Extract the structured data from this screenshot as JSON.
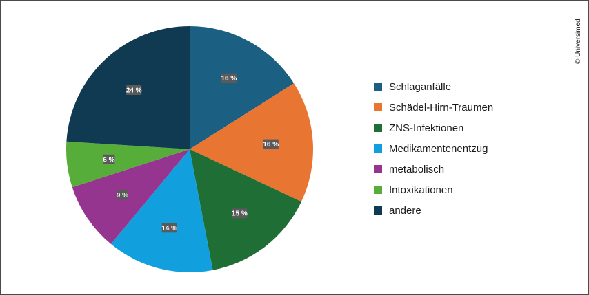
{
  "credit": "© Universimed",
  "chart_data": {
    "type": "pie",
    "title": "",
    "legend_position": "right",
    "slices": [
      {
        "label": "Schlaganfälle",
        "value": 16,
        "display": "16 %",
        "color": "#1b5f82"
      },
      {
        "label": "Schädel-Hirn-Traumen",
        "value": 16,
        "display": "16 %",
        "color": "#e87532"
      },
      {
        "label": "ZNS-Infektionen",
        "value": 15,
        "display": "15 %",
        "color": "#1e6e35"
      },
      {
        "label": "Medikamentenentzug",
        "value": 14,
        "display": "14 %",
        "color": "#11a0dd"
      },
      {
        "label": "metabolisch",
        "value": 9,
        "display": "9 %",
        "color": "#96358f"
      },
      {
        "label": "Intoxikationen",
        "value": 6,
        "display": "6 %",
        "color": "#57ad3a"
      },
      {
        "label": "andere",
        "value": 24,
        "display": "24 %",
        "color": "#0f3a52"
      }
    ]
  }
}
